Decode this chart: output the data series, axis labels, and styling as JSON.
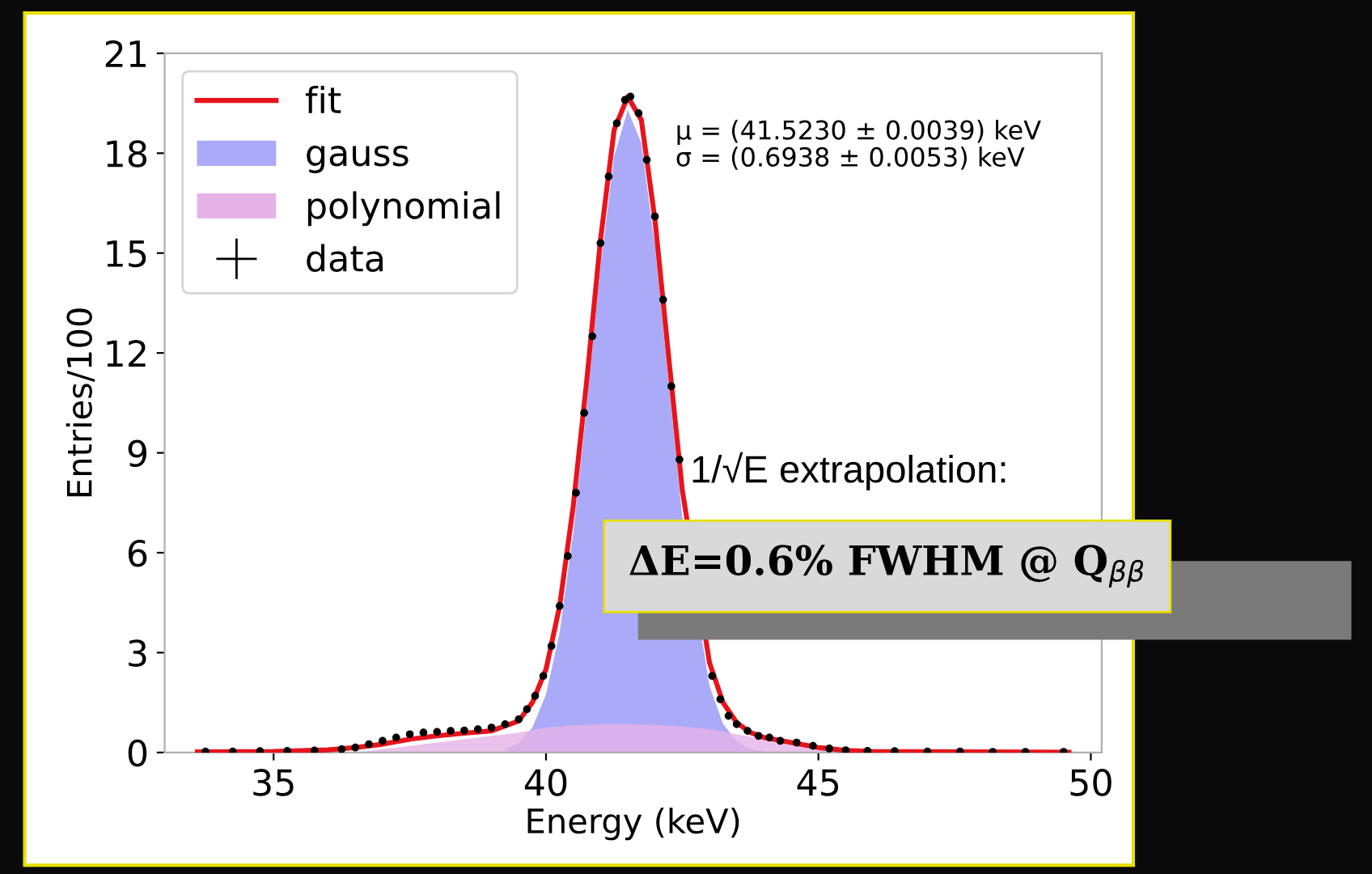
{
  "chart_data": {
    "type": "line",
    "xlabel": "Energy (keV)",
    "ylabel": "Entries/100",
    "xlim": [
      33,
      50.2
    ],
    "xticks": [
      35,
      40,
      45,
      50
    ],
    "ylim": [
      0,
      21
    ],
    "yticks": [
      0,
      3,
      6,
      9,
      12,
      15,
      18,
      21
    ],
    "grid": false,
    "legend": "top left",
    "series": [
      {
        "name": "gauss",
        "type": "area",
        "color": "#aaaaf8",
        "x": [
          39.25,
          39.5,
          39.75,
          40.0,
          40.25,
          40.5,
          40.75,
          41.0,
          41.25,
          41.5,
          41.75,
          42.0,
          42.25,
          42.5,
          43.0,
          43.25,
          43.5,
          43.75,
          44.0
        ],
        "values": [
          0.1,
          0.28,
          0.75,
          1.75,
          3.6,
          6.6,
          10.4,
          14.6,
          17.9,
          19.3,
          18.3,
          15.2,
          11.1,
          7.1,
          2.0,
          0.86,
          0.33,
          0.11,
          0.03
        ]
      },
      {
        "name": "polynomial",
        "type": "area",
        "color": "#e6b3e6",
        "x": [
          36.5,
          37.0,
          37.5,
          38.0,
          38.5,
          39.0,
          39.5,
          40.0,
          40.5,
          41.0,
          41.5,
          42.0,
          42.5,
          43.0,
          43.5,
          44.0,
          44.5,
          45.0,
          45.5
        ],
        "values": [
          0.0,
          0.1,
          0.2,
          0.3,
          0.4,
          0.5,
          0.6,
          0.75,
          0.82,
          0.85,
          0.85,
          0.83,
          0.78,
          0.7,
          0.55,
          0.4,
          0.25,
          0.1,
          0.0
        ]
      },
      {
        "name": "fit",
        "color": "#e8141c",
        "line_style": "solid",
        "marker": "none",
        "x": [
          33.6,
          35.0,
          36.0,
          36.5,
          37.0,
          37.5,
          38.0,
          38.5,
          39.0,
          39.5,
          39.75,
          40.0,
          40.25,
          40.5,
          40.75,
          41.0,
          41.25,
          41.5,
          41.75,
          42.0,
          42.25,
          42.5,
          43.0,
          43.25,
          43.5,
          43.75,
          44.0,
          44.5,
          45.0,
          45.5,
          46.0,
          49.6
        ],
        "values": [
          0.02,
          0.03,
          0.08,
          0.15,
          0.25,
          0.4,
          0.5,
          0.58,
          0.65,
          0.95,
          1.5,
          2.5,
          4.4,
          7.4,
          11.2,
          15.4,
          18.7,
          19.7,
          19.0,
          16.0,
          11.9,
          7.9,
          2.7,
          1.5,
          0.9,
          0.6,
          0.45,
          0.3,
          0.15,
          0.06,
          0.03,
          0.01
        ]
      },
      {
        "name": "data",
        "type": "scatter",
        "color": "#000000",
        "marker": "cross",
        "x": [
          33.75,
          34.25,
          34.75,
          35.25,
          35.75,
          36.25,
          36.5,
          36.75,
          37.0,
          37.25,
          37.5,
          37.75,
          38.0,
          38.25,
          38.5,
          38.75,
          39.0,
          39.25,
          39.5,
          39.65,
          39.8,
          39.95,
          40.1,
          40.25,
          40.4,
          40.55,
          40.7,
          40.85,
          41.0,
          41.15,
          41.3,
          41.45,
          41.55,
          41.7,
          41.85,
          42.0,
          42.15,
          42.3,
          42.45,
          43.05,
          43.2,
          43.35,
          43.5,
          43.7,
          43.9,
          44.1,
          44.3,
          44.6,
          44.9,
          45.2,
          45.5,
          45.9,
          46.4,
          47.0,
          47.6,
          48.2,
          48.8,
          49.5
        ],
        "values": [
          0.03,
          0.03,
          0.04,
          0.05,
          0.06,
          0.1,
          0.15,
          0.25,
          0.35,
          0.45,
          0.55,
          0.6,
          0.62,
          0.65,
          0.66,
          0.7,
          0.75,
          0.85,
          1.0,
          1.3,
          1.7,
          2.3,
          3.2,
          4.4,
          5.9,
          7.8,
          10.2,
          12.5,
          15.3,
          17.3,
          18.9,
          19.6,
          19.7,
          19.2,
          17.8,
          16.1,
          13.6,
          11.0,
          8.8,
          2.3,
          1.6,
          1.1,
          0.85,
          0.65,
          0.5,
          0.45,
          0.35,
          0.3,
          0.2,
          0.12,
          0.07,
          0.05,
          0.04,
          0.03,
          0.03,
          0.02,
          0.02,
          0.02
        ]
      }
    ],
    "annotations": [
      "μ = (41.5230 ± 0.0039) keV",
      "σ = (0.6938 ± 0.0053) keV",
      "1/√E extrapolation:",
      "ΔE=0.6% FWHM @ Q$_{ββ}$"
    ]
  }
}
